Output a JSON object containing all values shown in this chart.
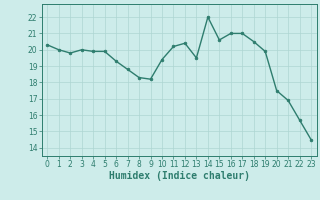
{
  "x": [
    0,
    1,
    2,
    3,
    4,
    5,
    6,
    7,
    8,
    9,
    10,
    11,
    12,
    13,
    14,
    15,
    16,
    17,
    18,
    19,
    20,
    21,
    22,
    23
  ],
  "y": [
    20.3,
    20.0,
    19.8,
    20.0,
    19.9,
    19.9,
    19.3,
    18.8,
    18.3,
    18.2,
    19.4,
    20.2,
    20.4,
    19.5,
    22.0,
    20.6,
    21.0,
    21.0,
    20.5,
    19.9,
    17.5,
    16.9,
    15.7,
    14.5
  ],
  "line_color": "#2e7d6e",
  "marker": "o",
  "marker_size": 2,
  "bg_color": "#cdecea",
  "grid_color": "#aed6d2",
  "xlabel": "Humidex (Indice chaleur)",
  "ylim": [
    13.5,
    22.8
  ],
  "yticks": [
    14,
    15,
    16,
    17,
    18,
    19,
    20,
    21,
    22
  ],
  "xticks": [
    0,
    1,
    2,
    3,
    4,
    5,
    6,
    7,
    8,
    9,
    10,
    11,
    12,
    13,
    14,
    15,
    16,
    17,
    18,
    19,
    20,
    21,
    22,
    23
  ],
  "tick_label_fontsize": 5.5,
  "xlabel_fontsize": 7,
  "line_width": 1.0
}
